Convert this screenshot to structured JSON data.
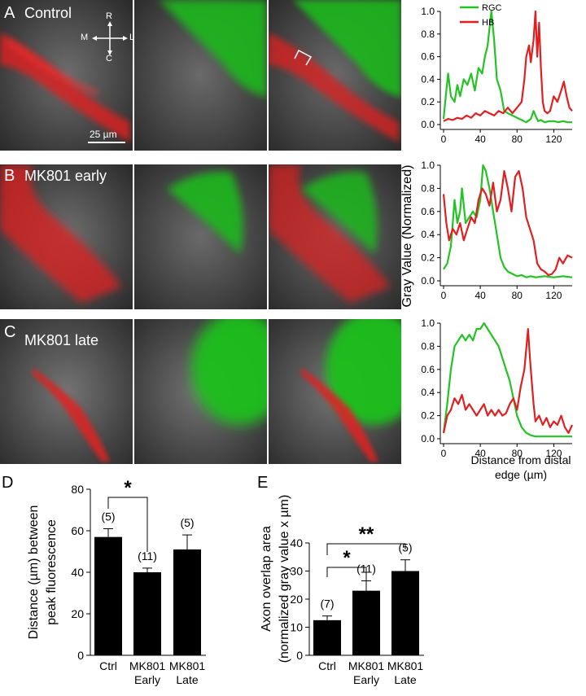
{
  "panels": {
    "A": {
      "letter": "A",
      "title": "Control",
      "scale_bar": "25 µm"
    },
    "B": {
      "letter": "B",
      "title": "MK801 early"
    },
    "C": {
      "letter": "C",
      "title": "MK801 late"
    },
    "D": {
      "letter": "D"
    },
    "E": {
      "letter": "E"
    }
  },
  "compass": {
    "top": "R",
    "bottom": "C",
    "left": "M",
    "right": "L"
  },
  "colors": {
    "rgc": "#22c322",
    "hb": "#e02020",
    "bar": "#000000"
  },
  "line_plots": {
    "legend": [
      "RGC",
      "HB"
    ],
    "ylabel": "Gray Value (Normalized)",
    "xlabel_line1": "Distance from distal",
    "xlabel_line2": "edge (µm)",
    "x_ticks": [
      "0",
      "40",
      "80",
      "120"
    ],
    "y_ticks": [
      "0.0",
      "0.2",
      "0.4",
      "0.6",
      "0.8",
      "1.0"
    ]
  },
  "chart_data": [
    {
      "type": "line",
      "panel": "A",
      "xlim": [
        0,
        140
      ],
      "ylim": [
        0,
        1.0
      ],
      "series": [
        {
          "name": "RGC",
          "color": "#22c322",
          "x": [
            0,
            3,
            5,
            8,
            12,
            15,
            18,
            22,
            26,
            30,
            34,
            38,
            42,
            45,
            48,
            50,
            52,
            55,
            58,
            62,
            66,
            70,
            75,
            80,
            85,
            90,
            95,
            98,
            100,
            103,
            106,
            110,
            115,
            120,
            125,
            130,
            135,
            140
          ],
          "y": [
            0.05,
            0.3,
            0.45,
            0.25,
            0.2,
            0.35,
            0.25,
            0.4,
            0.35,
            0.45,
            0.3,
            0.5,
            0.45,
            0.6,
            0.7,
            0.85,
            1.0,
            0.75,
            0.4,
            0.3,
            0.12,
            0.1,
            0.08,
            0.06,
            0.04,
            0.02,
            0.05,
            0.12,
            0.08,
            0.03,
            0.04,
            0.02,
            0.03,
            0.03,
            0.02,
            0.03,
            0.02,
            0.02
          ]
        },
        {
          "name": "HB",
          "color": "#e02020",
          "x": [
            0,
            5,
            10,
            15,
            20,
            25,
            30,
            35,
            40,
            45,
            50,
            55,
            60,
            65,
            70,
            75,
            80,
            85,
            88,
            90,
            93,
            95,
            98,
            100,
            102,
            104,
            106,
            108,
            110,
            113,
            116,
            120,
            124,
            128,
            131,
            134,
            137,
            140
          ],
          "y": [
            0.03,
            0.05,
            0.04,
            0.06,
            0.05,
            0.08,
            0.06,
            0.1,
            0.08,
            0.12,
            0.1,
            0.08,
            0.12,
            0.1,
            0.15,
            0.1,
            0.15,
            0.2,
            0.4,
            0.6,
            0.7,
            0.55,
            0.75,
            1.0,
            0.6,
            0.9,
            0.5,
            0.2,
            0.12,
            0.1,
            0.12,
            0.25,
            0.2,
            0.3,
            0.38,
            0.25,
            0.15,
            0.12
          ]
        }
      ]
    },
    {
      "type": "line",
      "panel": "B",
      "xlim": [
        0,
        140
      ],
      "ylim": [
        0,
        1.0
      ],
      "series": [
        {
          "name": "RGC",
          "color": "#22c322",
          "x": [
            0,
            4,
            8,
            10,
            12,
            15,
            18,
            20,
            24,
            28,
            32,
            36,
            40,
            43,
            46,
            50,
            54,
            58,
            62,
            66,
            70,
            75,
            80,
            85,
            90,
            95,
            100,
            110,
            120,
            130,
            140
          ],
          "y": [
            0.1,
            0.15,
            0.3,
            0.5,
            0.7,
            0.5,
            0.6,
            0.8,
            0.5,
            0.55,
            0.6,
            0.55,
            0.7,
            1.0,
            0.95,
            0.8,
            0.6,
            0.4,
            0.2,
            0.12,
            0.08,
            0.06,
            0.04,
            0.05,
            0.03,
            0.04,
            0.03,
            0.04,
            0.03,
            0.04,
            0.03
          ]
        },
        {
          "name": "HB",
          "color": "#e02020",
          "x": [
            0,
            3,
            6,
            10,
            14,
            18,
            22,
            26,
            30,
            34,
            38,
            42,
            46,
            50,
            54,
            58,
            62,
            66,
            70,
            74,
            78,
            82,
            86,
            90,
            94,
            98,
            102,
            106,
            110,
            114,
            118,
            122,
            126,
            130,
            135,
            140
          ],
          "y": [
            0.75,
            0.5,
            0.35,
            0.45,
            0.4,
            0.5,
            0.35,
            0.45,
            0.55,
            0.5,
            0.7,
            0.8,
            0.75,
            0.65,
            0.85,
            0.6,
            0.7,
            0.95,
            0.8,
            0.6,
            0.9,
            0.95,
            0.8,
            0.55,
            0.45,
            0.35,
            0.15,
            0.1,
            0.08,
            0.05,
            0.06,
            0.1,
            0.2,
            0.15,
            0.22,
            0.2
          ]
        }
      ]
    },
    {
      "type": "line",
      "panel": "C",
      "xlim": [
        0,
        140
      ],
      "ylim": [
        0,
        1.0
      ],
      "series": [
        {
          "name": "RGC",
          "color": "#22c322",
          "x": [
            0,
            4,
            8,
            12,
            16,
            20,
            24,
            28,
            32,
            36,
            40,
            44,
            48,
            52,
            56,
            60,
            64,
            68,
            72,
            76,
            80,
            85,
            90,
            95,
            100,
            110,
            120,
            130,
            140
          ],
          "y": [
            0.05,
            0.3,
            0.6,
            0.8,
            0.85,
            0.9,
            0.85,
            0.9,
            0.85,
            0.95,
            0.95,
            1.0,
            0.95,
            0.9,
            0.85,
            0.8,
            0.7,
            0.6,
            0.5,
            0.35,
            0.2,
            0.1,
            0.05,
            0.03,
            0.02,
            0.02,
            0.02,
            0.02,
            0.02
          ]
        },
        {
          "name": "HB",
          "color": "#e02020",
          "x": [
            0,
            4,
            8,
            12,
            16,
            20,
            24,
            28,
            32,
            36,
            40,
            44,
            48,
            52,
            56,
            60,
            64,
            68,
            72,
            76,
            80,
            84,
            88,
            92,
            94,
            96,
            98,
            100,
            104,
            108,
            112,
            116,
            120,
            124,
            128,
            132,
            136,
            140
          ],
          "y": [
            0.05,
            0.2,
            0.25,
            0.35,
            0.3,
            0.38,
            0.25,
            0.3,
            0.25,
            0.2,
            0.25,
            0.3,
            0.2,
            0.25,
            0.2,
            0.25,
            0.2,
            0.22,
            0.3,
            0.35,
            0.25,
            0.45,
            0.6,
            0.95,
            0.7,
            0.5,
            0.3,
            0.15,
            0.2,
            0.12,
            0.18,
            0.1,
            0.15,
            0.12,
            0.2,
            0.1,
            0.05,
            0.12
          ]
        }
      ]
    },
    {
      "type": "bar",
      "panel": "D",
      "categories": [
        "Ctrl",
        "MK801|Early",
        "MK801|Late"
      ],
      "values": [
        57,
        40,
        51
      ],
      "errors": [
        4,
        2,
        7
      ],
      "n_labels": [
        "(5)",
        "(11)",
        "(5)"
      ],
      "ylabel_line1": "Distance (µm) between",
      "ylabel_line2": "peak fluorescence",
      "ylim": [
        0,
        80
      ],
      "y_ticks": [
        "0",
        "20",
        "40",
        "60",
        "80"
      ],
      "significance": [
        {
          "from": 0,
          "to": 1,
          "label": "*"
        }
      ]
    },
    {
      "type": "bar",
      "panel": "E",
      "categories": [
        "Ctrl",
        "MK801|Early",
        "MK801|Late"
      ],
      "values": [
        12.5,
        23,
        30
      ],
      "errors": [
        1.5,
        3.5,
        4
      ],
      "n_labels": [
        "(7)",
        "(11)",
        "(5)"
      ],
      "ylabel_line1": "Axon overlap area",
      "ylabel_line2": "(normalized gray value x µm)",
      "ylim": [
        0,
        40
      ],
      "y_ticks": [
        "0",
        "10",
        "20",
        "30",
        "40"
      ],
      "significance": [
        {
          "from": 0,
          "to": 1,
          "label": "*"
        },
        {
          "from": 0,
          "to": 2,
          "label": "**"
        }
      ]
    }
  ]
}
